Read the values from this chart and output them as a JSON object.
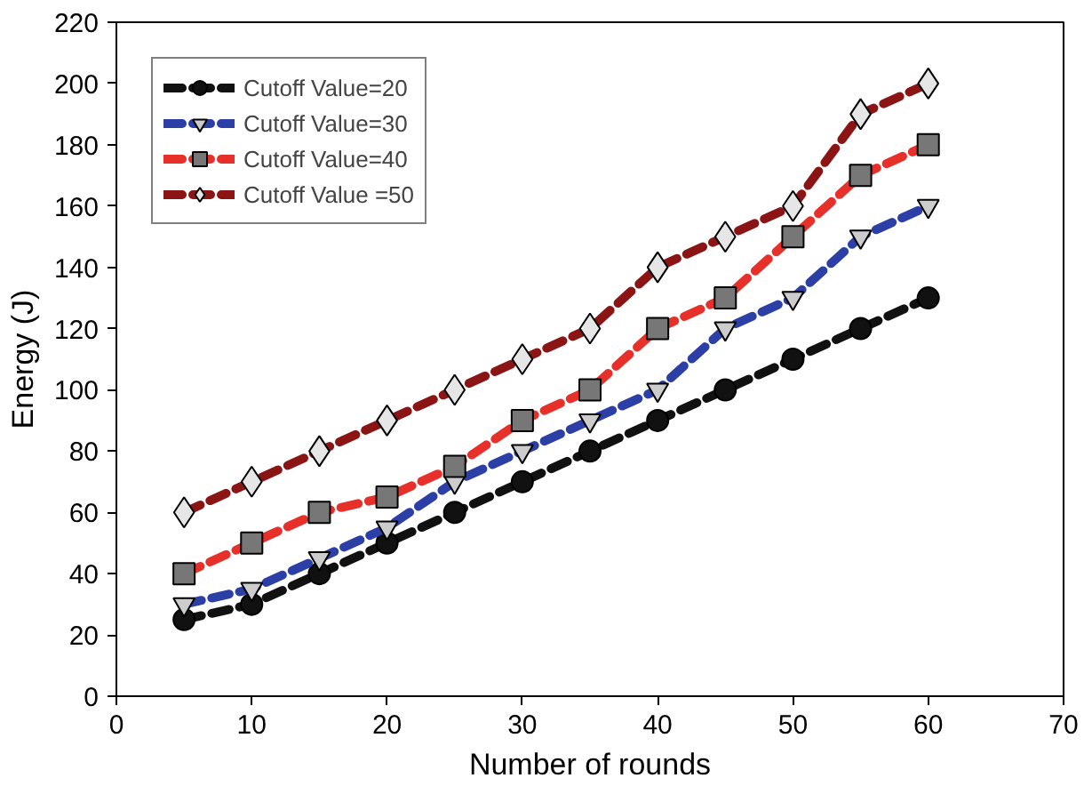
{
  "chart_data": {
    "type": "line",
    "xlabel": "Number of rounds",
    "ylabel": "Energy (J)",
    "x": [
      5,
      10,
      15,
      20,
      25,
      30,
      35,
      40,
      45,
      50,
      55,
      60
    ],
    "series": [
      {
        "name": "Cutoff Value=20",
        "color": "#111111",
        "marker": "circle",
        "values": [
          25,
          30,
          40,
          50,
          60,
          70,
          80,
          90,
          100,
          110,
          120,
          130
        ]
      },
      {
        "name": "Cutoff Value=30",
        "color": "#2b3fa6",
        "marker": "triangle",
        "values": [
          30,
          35,
          45,
          55,
          70,
          80,
          90,
          100,
          120,
          130,
          150,
          160
        ]
      },
      {
        "name": "Cutoff Value=40",
        "color": "#e8302a",
        "marker": "square",
        "values": [
          40,
          50,
          60,
          65,
          75,
          90,
          100,
          120,
          130,
          150,
          170,
          180
        ]
      },
      {
        "name": "Cutoff Value =50",
        "color": "#8b1414",
        "marker": "diamond",
        "values": [
          60,
          70,
          80,
          90,
          100,
          110,
          120,
          140,
          150,
          160,
          190,
          200
        ]
      }
    ],
    "xlim": [
      0,
      70
    ],
    "ylim": [
      0,
      220
    ],
    "xticks": [
      0,
      10,
      20,
      30,
      40,
      50,
      60,
      70
    ],
    "yticks": [
      0,
      20,
      40,
      60,
      80,
      100,
      120,
      140,
      160,
      180,
      200,
      220
    ],
    "grid": false,
    "legend": "top left",
    "line_style": "dashed"
  }
}
